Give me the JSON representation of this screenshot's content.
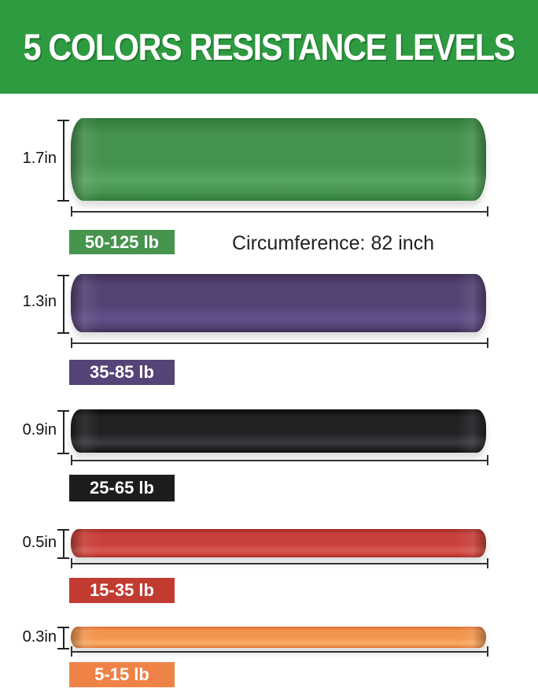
{
  "header": {
    "title": "5 COLORS RESISTANCE LEVELS",
    "bg_color": "#2e9b40",
    "text_color": "#ffffff"
  },
  "circumference": {
    "label": "Circumference: 82 inch"
  },
  "bands": [
    {
      "color_name": "green",
      "width_label": "1.7in",
      "resistance_label": "50-125 lb",
      "colors": {
        "mid": "#46934e",
        "edge": "#2f7a39",
        "light": "#58a560",
        "label_bg": "#46944e"
      }
    },
    {
      "color_name": "purple",
      "width_label": "1.3in",
      "resistance_label": "35-85 lb",
      "colors": {
        "mid": "#564375",
        "edge": "#3f3057",
        "light": "#64508a",
        "label_bg": "#564377"
      }
    },
    {
      "color_name": "black",
      "width_label": "0.9in",
      "resistance_label": "25-65 lb",
      "colors": {
        "mid": "#222225",
        "edge": "#0e0e10",
        "light": "#3c3c40",
        "label_bg": "#1d1d20"
      }
    },
    {
      "color_name": "red",
      "width_label": "0.5in",
      "resistance_label": "15-35 lb",
      "colors": {
        "mid": "#c9413a",
        "edge": "#a32c26",
        "light": "#d65a50",
        "label_bg": "#c23b31"
      }
    },
    {
      "color_name": "orange",
      "width_label": "0.3in",
      "resistance_label": "5-15 lb",
      "colors": {
        "mid": "#f2954f",
        "edge": "#e07038",
        "light": "#f8ae67",
        "label_bg": "#ef8347"
      }
    }
  ]
}
